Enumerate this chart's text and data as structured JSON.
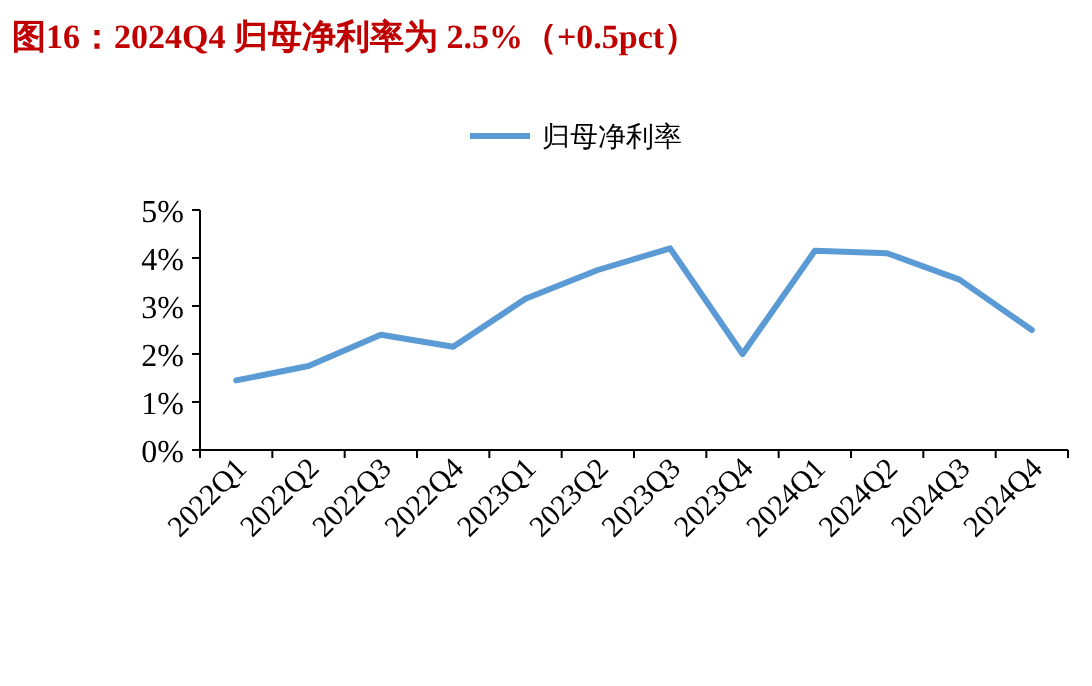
{
  "chart_data": {
    "type": "line",
    "title": "图16：2024Q4 归母净利率为 2.5%（+0.5pct）",
    "categories": [
      "2022Q1",
      "2022Q2",
      "2022Q3",
      "2022Q4",
      "2023Q1",
      "2023Q2",
      "2023Q3",
      "2023Q4",
      "2024Q1",
      "2024Q2",
      "2024Q3",
      "2024Q4"
    ],
    "series": [
      {
        "name": "归母净利率",
        "color": "#5b9bd5",
        "values": [
          1.45,
          1.75,
          2.4,
          2.15,
          3.15,
          3.75,
          4.2,
          2.0,
          4.15,
          4.1,
          3.55,
          2.5
        ]
      }
    ],
    "ylim": [
      0,
      5
    ],
    "yticks": [
      {
        "value": 0,
        "label": "0%"
      },
      {
        "value": 1,
        "label": "1%"
      },
      {
        "value": 2,
        "label": "2%"
      },
      {
        "value": 3,
        "label": "3%"
      },
      {
        "value": 4,
        "label": "4%"
      },
      {
        "value": 5,
        "label": "5%"
      }
    ],
    "grid": false,
    "legend": "top",
    "marker": "none",
    "line_style": "solid"
  }
}
